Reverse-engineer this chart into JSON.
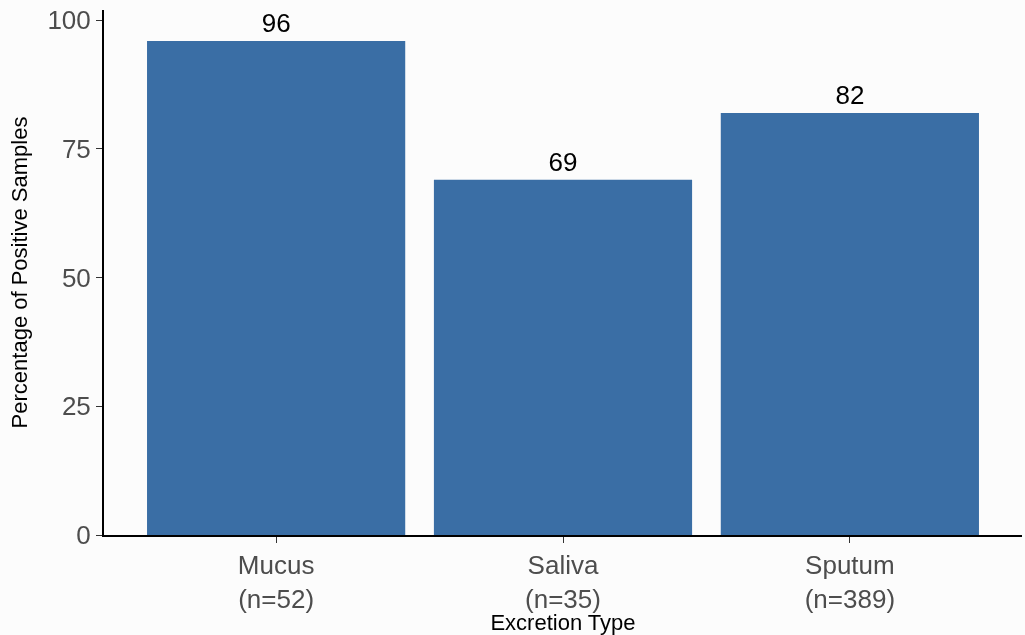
{
  "chart_data": {
    "type": "bar",
    "xlabel": "Excretion Type",
    "ylabel": "Percentage of Positive Samples",
    "categories": [
      "Mucus\n(n=52)",
      "Saliva\n(n=35)",
      "Sputum\n(n=389)"
    ],
    "values": [
      96,
      69,
      82
    ],
    "color": "#3a6ea5",
    "data_labels": true,
    "ylim": [
      0,
      102
    ],
    "yticks": [
      0,
      25,
      50,
      75,
      100
    ],
    "grid": false,
    "legend": false
  }
}
